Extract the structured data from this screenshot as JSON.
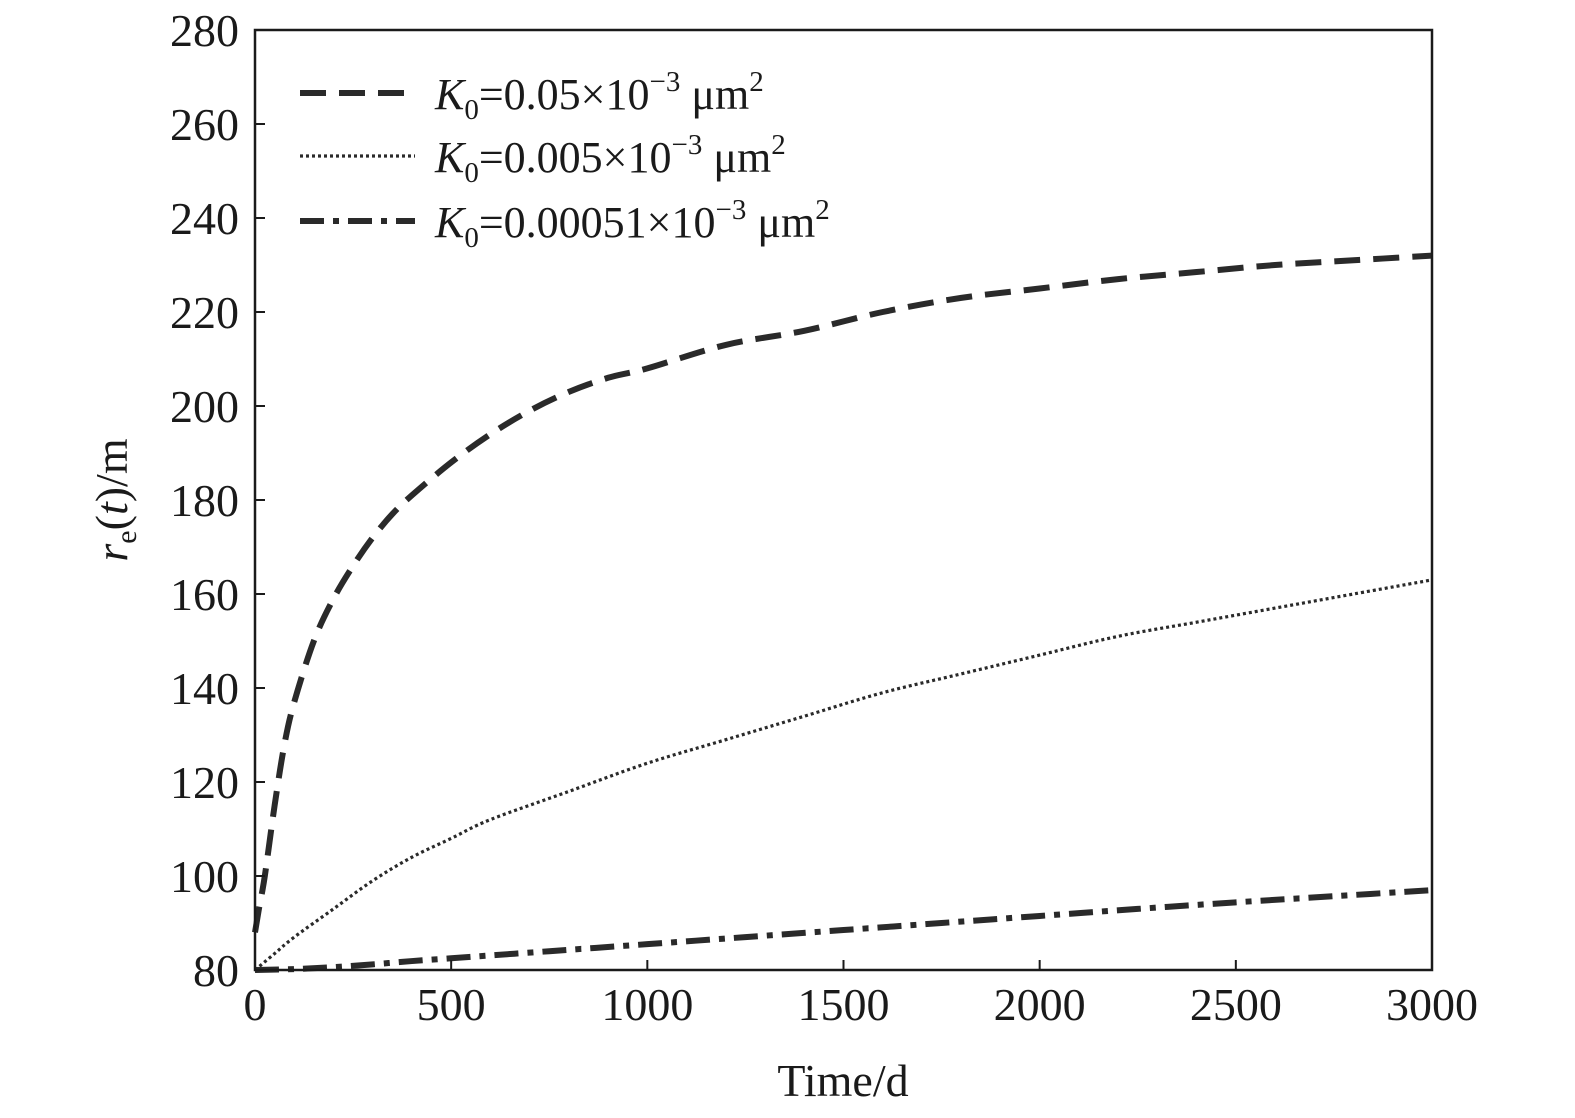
{
  "chart_data": {
    "type": "line",
    "title": "",
    "xlabel": "Time/d",
    "ylabel": {
      "r": "r",
      "sub": "e",
      "rest": "(t)/m",
      "t": "t"
    },
    "xlim": [
      0,
      3000
    ],
    "ylim": [
      80,
      280
    ],
    "x_ticks": [
      0,
      500,
      1000,
      1500,
      2000,
      2500,
      3000
    ],
    "x_tick_labels": [
      "0",
      "500",
      "1000",
      "1500",
      "2000",
      "2500",
      "3000"
    ],
    "y_ticks": [
      80,
      100,
      120,
      140,
      160,
      180,
      200,
      220,
      240,
      260,
      280
    ],
    "y_tick_labels": [
      "80",
      "100",
      "120",
      "140",
      "160",
      "180",
      "200",
      "220",
      "240",
      "260",
      "280"
    ],
    "grid": false,
    "legend_position": "top-left",
    "line_color": "#2a2a2a",
    "series": [
      {
        "legend": {
          "k": "K",
          "sub": "0",
          "value": "=0.05×10",
          "exp": "−3",
          "unit": " μm",
          "unit_exp": "2"
        },
        "style": "dashed",
        "x": [
          0,
          10,
          25,
          50,
          75,
          100,
          150,
          200,
          250,
          300,
          350,
          400,
          500,
          600,
          700,
          800,
          900,
          1000,
          1200,
          1400,
          1600,
          1800,
          2000,
          2200,
          2400,
          2600,
          2800,
          3000
        ],
        "y": [
          88,
          93,
          100,
          115,
          128,
          137,
          150,
          159,
          166,
          172,
          177,
          181,
          188,
          194,
          199,
          203,
          206,
          208,
          213,
          216,
          220,
          223,
          225,
          227,
          228.5,
          230,
          231,
          232
        ]
      },
      {
        "legend": {
          "k": "K",
          "sub": "0",
          "value": "=0.005×10",
          "exp": "−3",
          "unit": " μm",
          "unit_exp": "2"
        },
        "style": "dotted",
        "x": [
          0,
          50,
          100,
          200,
          300,
          400,
          500,
          600,
          800,
          1000,
          1200,
          1400,
          1600,
          1800,
          2000,
          2200,
          2400,
          2600,
          2800,
          3000
        ],
        "y": [
          80,
          83.5,
          87,
          93,
          99,
          104,
          108,
          112,
          118,
          124,
          129,
          134,
          139,
          143,
          147,
          151,
          154,
          157,
          160,
          163
        ]
      },
      {
        "legend": {
          "k": "K",
          "sub": "0",
          "value": "=0.00051×10",
          "exp": "−3",
          "unit": " μm",
          "unit_exp": "2"
        },
        "style": "dashdot",
        "x": [
          0,
          100,
          200,
          300,
          400,
          500,
          750,
          1000,
          1250,
          1500,
          1750,
          2000,
          2250,
          2500,
          2750,
          3000
        ],
        "y": [
          80,
          80.2,
          80.6,
          81.2,
          81.9,
          82.5,
          84,
          85.5,
          87,
          88.5,
          90,
          91.5,
          93,
          94.4,
          95.7,
          97
        ]
      }
    ]
  }
}
